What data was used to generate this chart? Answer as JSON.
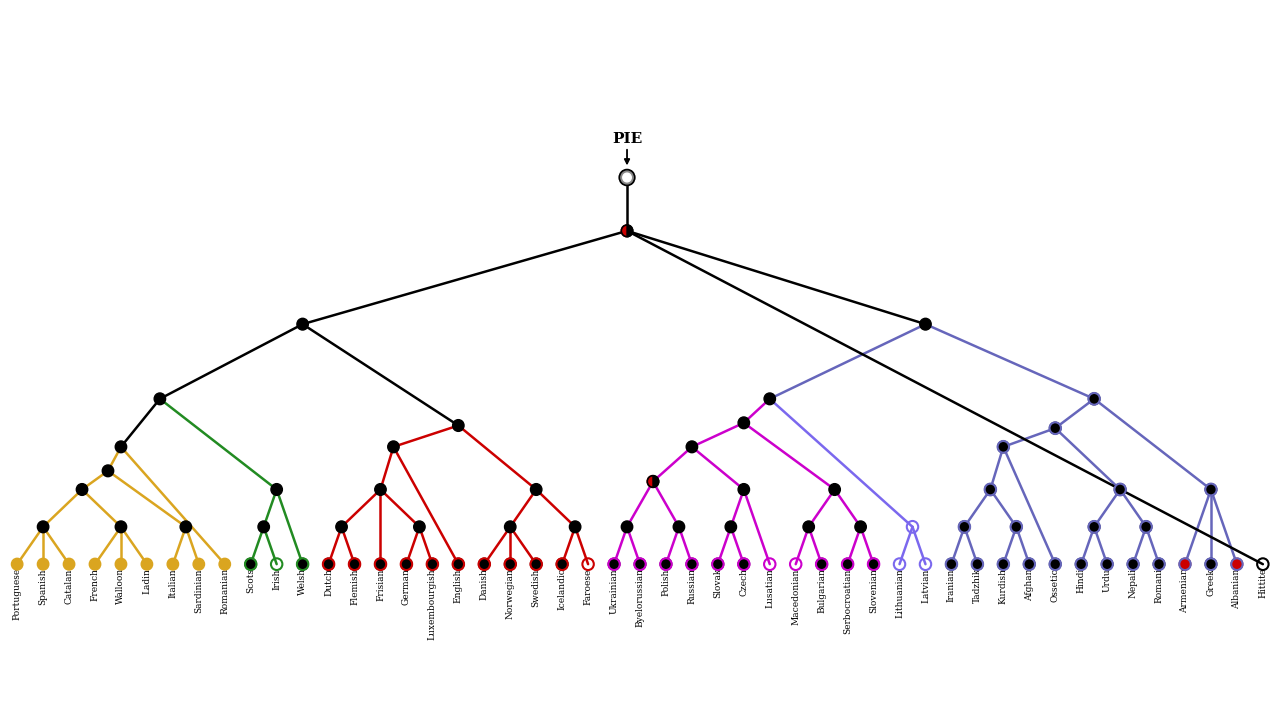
{
  "leaves": [
    "Portuguese",
    "Spanish",
    "Catalan",
    "French",
    "Walloon",
    "Ladin",
    "Italian",
    "Sardinian",
    "Romanian",
    "Scots",
    "Irish",
    "Welsh",
    "Dutch",
    "Flemish",
    "Frisian",
    "German",
    "Luxembourgish",
    "English",
    "Danish",
    "Norwegian",
    "Swedish",
    "Icelandic",
    "Faroese",
    "Ukrainian",
    "Byelorussian",
    "Polish",
    "Russian",
    "Slovak",
    "Czech",
    "Lusatian",
    "Macedonian",
    "Bulgarian",
    "Serbocroatian",
    "Slovenian",
    "Lithuanian",
    "Latvian",
    "Iranian",
    "Tadzhik",
    "Kurdish",
    "Afghan",
    "Ossetic",
    "Hindi",
    "Urdu",
    "Nepali",
    "Romani",
    "Armenian",
    "Greek",
    "Albanian",
    "Hittite"
  ],
  "colors": {
    "romance": "#DAA520",
    "celtic": "#228B22",
    "germanic": "#CC0000",
    "slavic": "#CC00CC",
    "baltic": "#7B68EE",
    "iir": "#6666BB",
    "black": "#000000",
    "grey": "#888888",
    "red": "#CC0000",
    "white": "#FFFFFF",
    "brown": "#8B4513"
  },
  "figsize": [
    12.8,
    7.15
  ],
  "dpi": 100
}
